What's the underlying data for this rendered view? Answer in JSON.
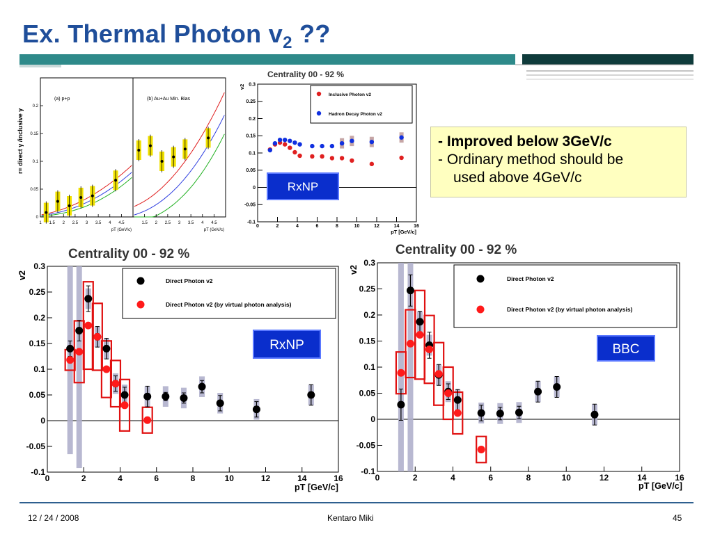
{
  "slide": {
    "title_main": "Ex. Thermal Photon v",
    "title_sub": "2",
    "title_tail": " ??",
    "bullets": [
      "- Improved below 3GeV/c",
      "- Ordinary method should be",
      "used above 4GeV/c"
    ],
    "footer_date": "12 / 24 / 2008",
    "footer_author": "Kentaro Miki",
    "footer_page": "45"
  },
  "colors": {
    "title": "#1f4e9a",
    "teal": "#2e8a8a",
    "dark_teal": "#0f3b3b",
    "box_blue": "#0a2ecc",
    "direct": "#000000",
    "virtual": "#ff1a1a",
    "inclusive": "#e02020",
    "hadron": "#1030e0",
    "note_bg": "#ffffc0"
  },
  "chart_data": [
    {
      "type": "scatter",
      "panel_label": "(a) p+p",
      "ylabel": "r= direct γ /inclusive γ",
      "xlabel": "pT (GeV/c)",
      "xlim": [
        1,
        5
      ],
      "ylim": [
        0,
        0.25
      ],
      "x_ticks": [
        "1",
        "1.5",
        "2",
        "2.5",
        "3",
        "3.5",
        "4",
        "4.5"
      ],
      "y_ticks": [
        "0",
        "0.05",
        "0.1",
        "0.15",
        "0.2"
      ],
      "points": [
        [
          1.25,
          0.008
        ],
        [
          1.75,
          0.028
        ],
        [
          2.25,
          0.02
        ],
        [
          2.75,
          0.035
        ],
        [
          3.25,
          0.038
        ],
        [
          4.25,
          0.066
        ]
      ]
    },
    {
      "type": "scatter",
      "panel_label": "(b) Au+Au Min. Bias",
      "xlabel": "pT (GeV/c)",
      "xlim": [
        1,
        5
      ],
      "ylim": [
        0,
        0.25
      ],
      "x_ticks": [
        "1.5",
        "2",
        "2.5",
        "3",
        "3.5",
        "4",
        "4.5"
      ],
      "points": [
        [
          1.25,
          0.12
        ],
        [
          1.75,
          0.128
        ],
        [
          2.25,
          0.1
        ],
        [
          2.75,
          0.108
        ],
        [
          3.25,
          0.122
        ],
        [
          4.25,
          0.142
        ]
      ]
    },
    {
      "type": "scatter",
      "title": "Centrality 00 - 92 %",
      "ylabel": "v2",
      "xlabel": "pT [GeV/c]",
      "xlim": [
        0,
        16
      ],
      "ylim": [
        -0.1,
        0.3
      ],
      "x_ticks": [
        "0",
        "2",
        "4",
        "6",
        "8",
        "10",
        "12",
        "14",
        "16"
      ],
      "y_ticks": [
        "-0.1",
        "-0.05",
        "0",
        "0.05",
        "0.1",
        "0.15",
        "0.2",
        "0.25",
        "0.3"
      ],
      "label_box": "RxNP",
      "series": [
        {
          "name": "Inclusive Photon v2",
          "x": [
            1.25,
            1.75,
            2.25,
            2.75,
            3.25,
            3.75,
            4.25,
            5.5,
            6.5,
            7.5,
            8.5,
            9.5,
            11.5,
            14.5
          ],
          "y": [
            0.11,
            0.125,
            0.13,
            0.125,
            0.115,
            0.102,
            0.092,
            0.09,
            0.09,
            0.085,
            0.085,
            0.078,
            0.068,
            0.086
          ]
        },
        {
          "name": "Hadron Decay Photon v2",
          "x": [
            1.25,
            1.75,
            2.25,
            2.75,
            3.25,
            3.75,
            4.25,
            5.5,
            6.5,
            7.5,
            8.5,
            9.5,
            11.5,
            14.5
          ],
          "y": [
            0.108,
            0.128,
            0.138,
            0.138,
            0.135,
            0.13,
            0.125,
            0.12,
            0.12,
            0.12,
            0.128,
            0.135,
            0.132,
            0.145
          ]
        }
      ]
    },
    {
      "type": "scatter",
      "title": "Centrality 00 - 92 %",
      "ylabel": "v2",
      "xlabel": "pT [GeV/c]",
      "xlim": [
        0,
        16
      ],
      "ylim": [
        -0.1,
        0.3
      ],
      "x_ticks": [
        "0",
        "2",
        "4",
        "6",
        "8",
        "10",
        "12",
        "14",
        "16"
      ],
      "y_ticks": [
        "-0.1",
        "-0.05",
        "0",
        "0.05",
        "0.1",
        "0.15",
        "0.2",
        "0.25",
        "0.3"
      ],
      "label_box": "RxNP",
      "series": [
        {
          "name": "Direct Photon v2",
          "x": [
            1.25,
            1.75,
            2.25,
            2.75,
            3.25,
            3.75,
            4.25,
            5.5,
            6.5,
            7.5,
            8.5,
            9.5,
            11.5,
            14.5
          ],
          "y": [
            0.14,
            0.175,
            0.237,
            0.163,
            0.14,
            0.072,
            0.05,
            0.047,
            0.047,
            0.044,
            0.066,
            0.034,
            0.022,
            0.05
          ]
        },
        {
          "name": "Direct Photon v2 (by virtual photon analysis)",
          "x": [
            1.25,
            1.75,
            2.25,
            2.75,
            3.25,
            3.75,
            4.25,
            5.5
          ],
          "y": [
            0.118,
            0.134,
            0.185,
            0.163,
            0.1,
            0.072,
            0.03,
            0.001
          ]
        }
      ]
    },
    {
      "type": "scatter",
      "title": "Centrality 00 - 92 %",
      "ylabel": "v2",
      "xlabel": "pT [GeV/c]",
      "xlim": [
        0,
        16
      ],
      "ylim": [
        -0.1,
        0.3
      ],
      "x_ticks": [
        "0",
        "2",
        "4",
        "6",
        "8",
        "10",
        "12",
        "14",
        "16"
      ],
      "y_ticks": [
        "-0.1",
        "-0.05",
        "0",
        "0.05",
        "0.1",
        "0.15",
        "0.2",
        "0.25",
        "0.3"
      ],
      "label_box": "BBC",
      "series": [
        {
          "name": "Direct Photon v2",
          "x": [
            1.25,
            1.75,
            2.25,
            2.75,
            3.25,
            3.75,
            4.25,
            5.5,
            6.5,
            7.5,
            8.5,
            9.5,
            11.5
          ],
          "y": [
            0.028,
            0.247,
            0.187,
            0.142,
            0.085,
            0.053,
            0.037,
            0.012,
            0.011,
            0.013,
            0.053,
            0.062,
            0.009
          ]
        },
        {
          "name": "Direct Photon v2 (by virtual photon analysis)",
          "x": [
            1.25,
            1.75,
            2.25,
            2.75,
            3.25,
            3.75,
            4.25,
            5.5
          ],
          "y": [
            0.089,
            0.145,
            0.162,
            0.134,
            0.087,
            0.05,
            0.012,
            -0.058
          ]
        }
      ]
    }
  ]
}
